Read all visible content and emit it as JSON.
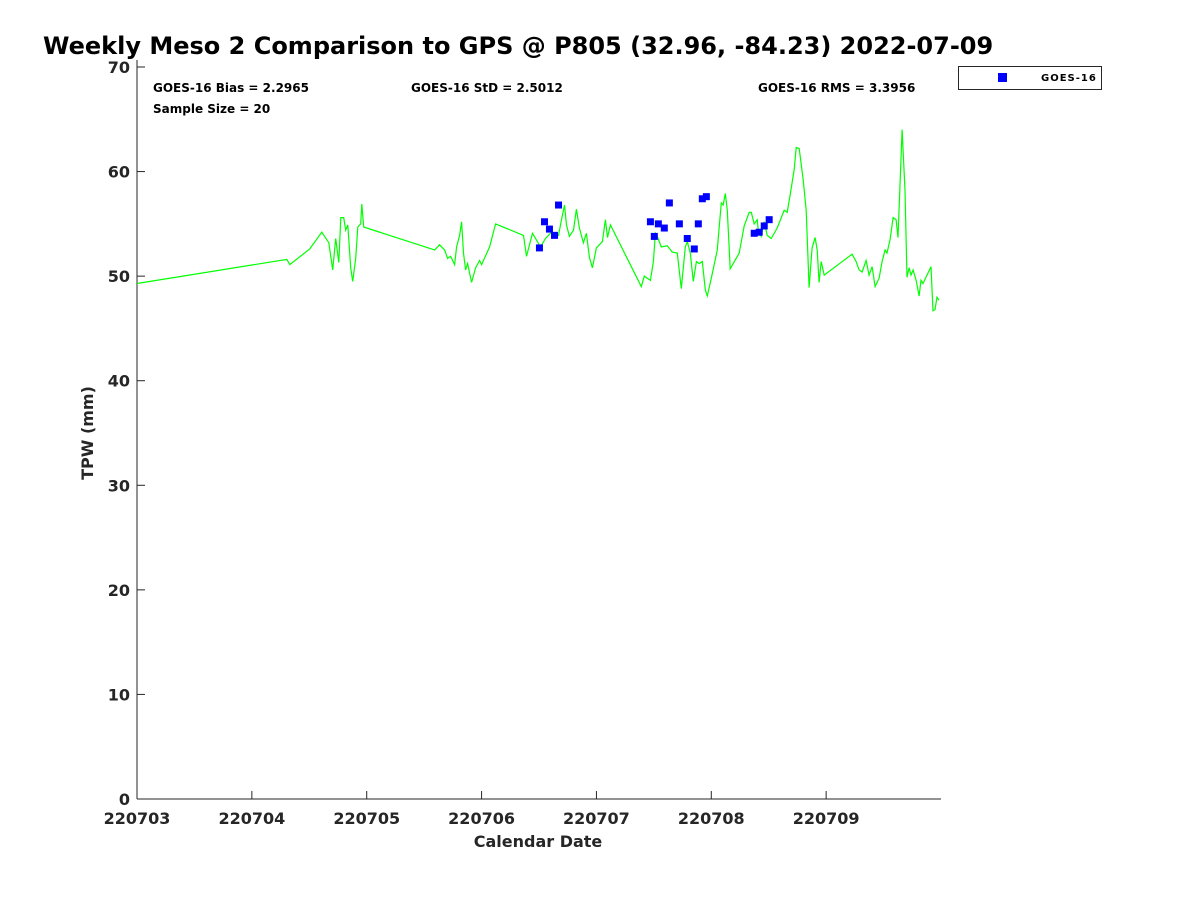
{
  "chart_data": {
    "type": "line",
    "title": "Weekly Meso 2 Comparison to GPS @ P805 (32.96, -84.23) 2022-07-09",
    "xlabel": "Calendar Date",
    "ylabel": "TPW (mm)",
    "xlim": [
      3,
      10
    ],
    "ylim": [
      0,
      70
    ],
    "x_unit_note": "day of month, July 2022",
    "xticks": [
      3,
      4,
      5,
      6,
      7,
      8,
      9
    ],
    "xtick_labels": [
      "220703",
      "220704",
      "220705",
      "220706",
      "220707",
      "220708",
      "220709"
    ],
    "yticks": [
      0,
      10,
      20,
      30,
      40,
      50,
      60,
      70
    ],
    "ytick_labels": [
      "0",
      "10",
      "20",
      "30",
      "40",
      "50",
      "60",
      "70"
    ],
    "grid": false,
    "legend": {
      "placement": "outside-top-right",
      "entries": [
        "GOES-16"
      ]
    },
    "stats": {
      "bias": "GOES-16 Bias = 2.2965",
      "std": "GOES-16 StD = 2.5012",
      "rms": "GOES-16 RMS = 3.3956",
      "sample": "Sample Size = 20"
    },
    "colors": {
      "gps_line": "#00ff00",
      "goes_points": "#0000ff"
    },
    "series": [
      {
        "name": "GPS",
        "kind": "line",
        "x": [
          3.0,
          4.304,
          4.33,
          4.504,
          4.609,
          4.67,
          4.704,
          4.73,
          4.757,
          4.774,
          4.8,
          4.817,
          4.835,
          4.861,
          4.878,
          4.904,
          4.922,
          4.948,
          4.957,
          4.974,
          5.591,
          5.635,
          5.678,
          5.704,
          5.73,
          5.765,
          5.783,
          5.809,
          5.826,
          5.843,
          5.861,
          5.878,
          5.913,
          5.948,
          5.983,
          6.0,
          6.07,
          6.122,
          6.365,
          6.391,
          6.443,
          6.513,
          6.557,
          6.609,
          6.67,
          6.696,
          6.722,
          6.739,
          6.765,
          6.8,
          6.826,
          6.852,
          6.887,
          6.913,
          6.939,
          6.965,
          7.0,
          7.052,
          7.078,
          7.096,
          7.122,
          7.391,
          7.417,
          7.47,
          7.496,
          7.513,
          7.53,
          7.565,
          7.617,
          7.661,
          7.704,
          7.739,
          7.774,
          7.791,
          7.817,
          7.843,
          7.87,
          7.896,
          7.922,
          7.948,
          7.965,
          8.0,
          8.052,
          8.061,
          8.087,
          8.104,
          8.122,
          8.139,
          8.165,
          8.243,
          8.287,
          8.33,
          8.348,
          8.374,
          8.4,
          8.409,
          8.435,
          8.461,
          8.487,
          8.522,
          8.574,
          8.635,
          8.661,
          8.687,
          8.722,
          8.739,
          8.765,
          8.8,
          8.826,
          8.852,
          8.878,
          8.904,
          8.922,
          8.939,
          8.957,
          8.983,
          9.226,
          9.261,
          9.287,
          9.313,
          9.348,
          9.374,
          9.4,
          9.426,
          9.461,
          9.487,
          9.513,
          9.53,
          9.557,
          9.583,
          9.609,
          9.626,
          9.661,
          9.687,
          9.704,
          9.722,
          9.739,
          9.757,
          9.783,
          9.809,
          9.826,
          9.843,
          9.887,
          9.913,
          9.93,
          9.948,
          9.965,
          9.983
        ],
        "y": [
          49.3,
          51.6,
          51.1,
          52.6,
          54.2,
          53.2,
          50.6,
          53.6,
          51.3,
          55.6,
          55.6,
          54.4,
          54.9,
          50.8,
          49.5,
          51.7,
          54.7,
          55.0,
          56.9,
          54.7,
          52.5,
          53.0,
          52.5,
          51.7,
          51.9,
          51.1,
          52.8,
          53.9,
          55.2,
          52.2,
          50.6,
          51.2,
          49.4,
          50.8,
          51.5,
          51.1,
          52.8,
          55.0,
          53.9,
          51.9,
          54.1,
          52.8,
          53.6,
          54.2,
          53.9,
          55.4,
          56.8,
          54.9,
          53.8,
          54.4,
          56.4,
          54.6,
          53.2,
          54.1,
          51.8,
          50.8,
          52.7,
          53.3,
          55.4,
          53.7,
          54.9,
          49.0,
          50.0,
          49.6,
          51.4,
          54.1,
          53.8,
          52.8,
          52.9,
          52.3,
          52.2,
          48.8,
          52.8,
          53.3,
          52.2,
          49.5,
          51.4,
          51.2,
          51.4,
          48.7,
          48.1,
          49.8,
          52.5,
          53.7,
          57.0,
          56.8,
          57.9,
          56.3,
          50.7,
          52.2,
          54.8,
          56.1,
          56.1,
          55.0,
          55.4,
          54.4,
          53.8,
          55.2,
          53.9,
          53.6,
          54.6,
          56.3,
          56.1,
          57.8,
          60.2,
          62.3,
          62.2,
          59.2,
          56.3,
          48.9,
          52.7,
          53.7,
          52.5,
          49.4,
          51.4,
          50.1,
          52.1,
          51.4,
          50.6,
          50.4,
          51.5,
          50.1,
          50.9,
          49.0,
          49.8,
          51.4,
          52.5,
          52.2,
          53.5,
          55.6,
          55.4,
          53.7,
          64.0,
          58.2,
          49.9,
          50.8,
          50.1,
          50.6,
          49.6,
          48.1,
          49.6,
          49.3,
          50.3,
          50.9,
          46.7,
          46.8,
          48.0,
          47.7
        ]
      },
      {
        "name": "GOES-16",
        "kind": "scatter",
        "x": [
          6.504,
          6.548,
          6.591,
          6.635,
          6.67,
          7.47,
          7.504,
          7.539,
          7.591,
          7.635,
          7.722,
          7.791,
          7.852,
          7.887,
          7.922,
          7.957,
          8.374,
          8.417,
          8.461,
          8.504
        ],
        "y": [
          52.7,
          55.2,
          54.5,
          53.9,
          56.8,
          55.2,
          53.8,
          55.0,
          54.6,
          57.0,
          55.0,
          53.6,
          52.6,
          55.0,
          57.4,
          57.6,
          54.1,
          54.2,
          54.8,
          55.4
        ]
      }
    ]
  }
}
